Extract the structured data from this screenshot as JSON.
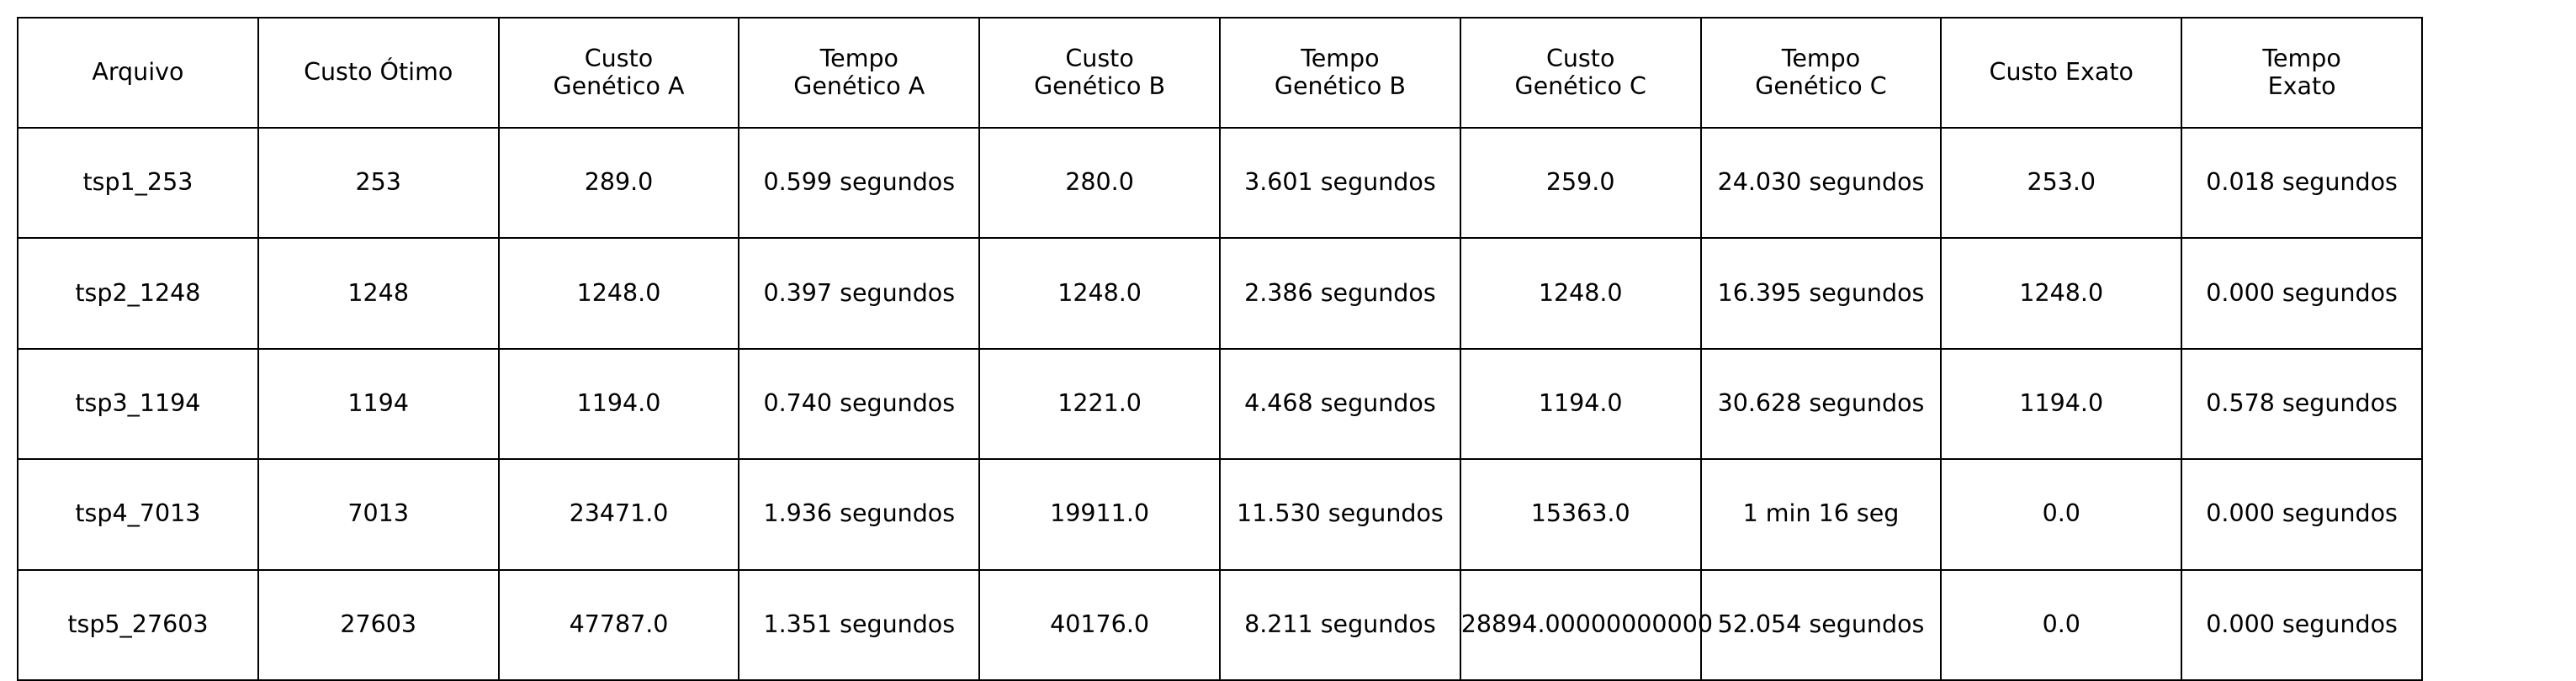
{
  "chart_data": {
    "type": "table",
    "columns": [
      "Arquivo",
      "Custo Ótimo",
      "Custo\nGenético A",
      "Tempo\nGenético A",
      "Custo\nGenético B",
      "Tempo\nGenético B",
      "Custo\nGenético C",
      "Tempo\nGenético C",
      "Custo Exato",
      "Tempo\nExato"
    ],
    "rows": [
      [
        "tsp1_253",
        "253",
        "289.0",
        "0.599 segundos",
        "280.0",
        "3.601 segundos",
        "259.0",
        "24.030 segundos",
        "253.0",
        "0.018 segundos"
      ],
      [
        "tsp2_1248",
        "1248",
        "1248.0",
        "0.397 segundos",
        "1248.0",
        "2.386 segundos",
        "1248.0",
        "16.395 segundos",
        "1248.0",
        "0.000 segundos"
      ],
      [
        "tsp3_1194",
        "1194",
        "1194.0",
        "0.740 segundos",
        "1221.0",
        "4.468 segundos",
        "1194.0",
        "30.628 segundos",
        "1194.0",
        "0.578 segundos"
      ],
      [
        "tsp4_7013",
        "7013",
        "23471.0",
        "1.936 segundos",
        "19911.0",
        "11.530 segundos",
        "15363.0",
        "1 min 16 seg",
        "0.0",
        "0.000 segundos"
      ],
      [
        "tsp5_27603",
        "27603",
        "47787.0",
        "1.351 segundos",
        "40176.0",
        "8.211 segundos",
        "28894.00000000000",
        "52.054 segundos",
        "0.0",
        "0.000 segundos"
      ]
    ]
  },
  "colors": {
    "background": "#ffffff",
    "border": "#000000",
    "text": "#000000"
  }
}
